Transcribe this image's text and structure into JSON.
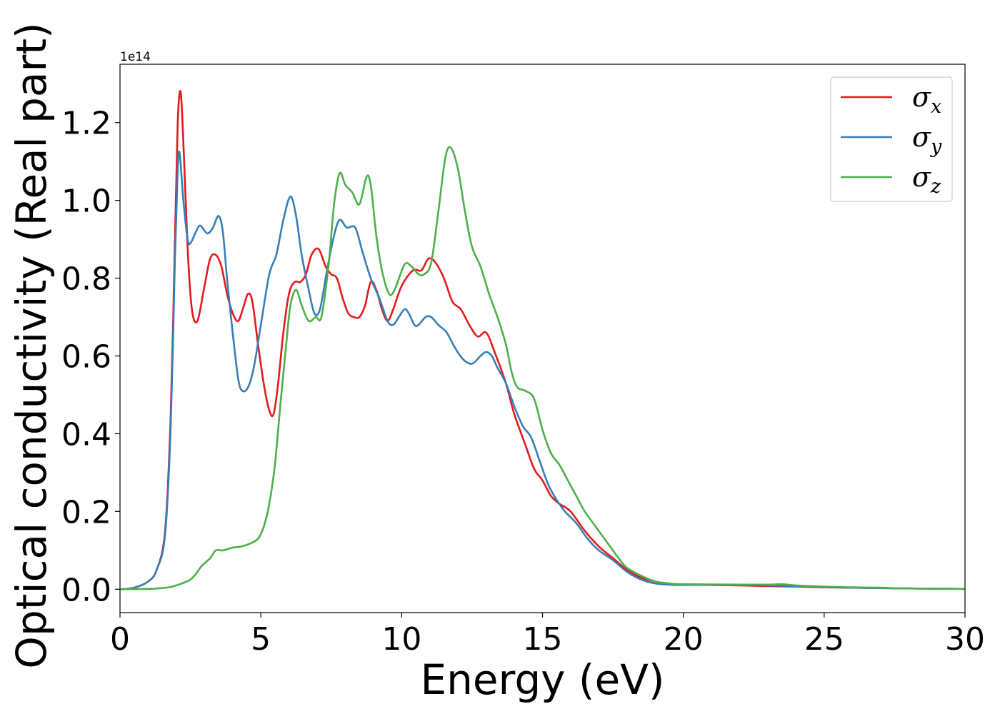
{
  "chart_data": {
    "type": "line",
    "xlabel": "Energy (eV)",
    "ylabel": "Optical conductivity (Real part)",
    "y_offset_label": "1e14",
    "xlim": [
      0,
      30
    ],
    "ylim": [
      -0.06,
      1.35
    ],
    "x_ticks": [
      0,
      5,
      10,
      15,
      20,
      25,
      30
    ],
    "x_tick_labels": [
      "0",
      "5",
      "10",
      "15",
      "20",
      "25",
      "30"
    ],
    "y_ticks": [
      0.0,
      0.2,
      0.4,
      0.6,
      0.8,
      1.0,
      1.2
    ],
    "y_tick_labels": [
      "0.0",
      "0.2",
      "0.4",
      "0.6",
      "0.8",
      "1.0",
      "1.2"
    ],
    "grid": false,
    "legend_position": "top-right",
    "series": [
      {
        "name": "σx",
        "base": "σ",
        "sub": "x",
        "color": "#e41a1c",
        "points": [
          [
            0,
            0
          ],
          [
            0.5,
            0.004
          ],
          [
            1,
            0.02
          ],
          [
            1.3,
            0.05
          ],
          [
            1.6,
            0.15
          ],
          [
            1.8,
            0.45
          ],
          [
            1.95,
            0.9
          ],
          [
            2.05,
            1.2
          ],
          [
            2.15,
            1.28
          ],
          [
            2.25,
            1.15
          ],
          [
            2.4,
            0.88
          ],
          [
            2.55,
            0.72
          ],
          [
            2.75,
            0.69
          ],
          [
            3,
            0.78
          ],
          [
            3.2,
            0.85
          ],
          [
            3.4,
            0.86
          ],
          [
            3.6,
            0.83
          ],
          [
            3.8,
            0.76
          ],
          [
            4,
            0.71
          ],
          [
            4.2,
            0.69
          ],
          [
            4.4,
            0.73
          ],
          [
            4.55,
            0.76
          ],
          [
            4.7,
            0.74
          ],
          [
            4.9,
            0.63
          ],
          [
            5.1,
            0.53
          ],
          [
            5.3,
            0.46
          ],
          [
            5.45,
            0.45
          ],
          [
            5.6,
            0.52
          ],
          [
            5.8,
            0.66
          ],
          [
            6,
            0.76
          ],
          [
            6.2,
            0.79
          ],
          [
            6.4,
            0.79
          ],
          [
            6.6,
            0.81
          ],
          [
            6.8,
            0.86
          ],
          [
            7.05,
            0.875
          ],
          [
            7.3,
            0.83
          ],
          [
            7.5,
            0.81
          ],
          [
            7.7,
            0.8
          ],
          [
            7.9,
            0.75
          ],
          [
            8.1,
            0.71
          ],
          [
            8.3,
            0.7
          ],
          [
            8.5,
            0.7
          ],
          [
            8.7,
            0.73
          ],
          [
            8.9,
            0.79
          ],
          [
            9.1,
            0.77
          ],
          [
            9.3,
            0.72
          ],
          [
            9.5,
            0.69
          ],
          [
            9.7,
            0.72
          ],
          [
            10,
            0.78
          ],
          [
            10.4,
            0.82
          ],
          [
            10.7,
            0.82
          ],
          [
            10.95,
            0.85
          ],
          [
            11.2,
            0.84
          ],
          [
            11.5,
            0.8
          ],
          [
            11.8,
            0.74
          ],
          [
            12.1,
            0.72
          ],
          [
            12.4,
            0.68
          ],
          [
            12.7,
            0.65
          ],
          [
            13,
            0.66
          ],
          [
            13.3,
            0.61
          ],
          [
            13.7,
            0.53
          ],
          [
            14,
            0.45
          ],
          [
            14.4,
            0.37
          ],
          [
            14.7,
            0.31
          ],
          [
            15,
            0.28
          ],
          [
            15.3,
            0.24
          ],
          [
            15.6,
            0.22
          ],
          [
            16,
            0.2
          ],
          [
            16.5,
            0.15
          ],
          [
            17,
            0.11
          ],
          [
            17.5,
            0.08
          ],
          [
            18,
            0.05
          ],
          [
            18.5,
            0.03
          ],
          [
            19,
            0.02
          ],
          [
            19.5,
            0.013
          ],
          [
            20,
            0.012
          ],
          [
            22,
            0.01
          ],
          [
            23,
            0.008
          ],
          [
            24,
            0.007
          ],
          [
            25,
            0.005
          ],
          [
            26,
            0.004
          ],
          [
            27,
            0.003
          ],
          [
            28,
            0.002
          ],
          [
            30,
            0.001
          ]
        ]
      },
      {
        "name": "σy",
        "base": "σ",
        "sub": "y",
        "color": "#377eb8",
        "points": [
          [
            0,
            0
          ],
          [
            0.5,
            0.004
          ],
          [
            1,
            0.02
          ],
          [
            1.3,
            0.05
          ],
          [
            1.6,
            0.14
          ],
          [
            1.8,
            0.42
          ],
          [
            1.95,
            0.85
          ],
          [
            2.05,
            1.08
          ],
          [
            2.12,
            1.12
          ],
          [
            2.25,
            1.0
          ],
          [
            2.4,
            0.9
          ],
          [
            2.5,
            0.89
          ],
          [
            2.7,
            0.92
          ],
          [
            2.85,
            0.935
          ],
          [
            3.1,
            0.915
          ],
          [
            3.3,
            0.93
          ],
          [
            3.5,
            0.96
          ],
          [
            3.65,
            0.92
          ],
          [
            3.8,
            0.8
          ],
          [
            4,
            0.66
          ],
          [
            4.2,
            0.54
          ],
          [
            4.35,
            0.51
          ],
          [
            4.55,
            0.52
          ],
          [
            4.75,
            0.57
          ],
          [
            5,
            0.68
          ],
          [
            5.3,
            0.81
          ],
          [
            5.55,
            0.86
          ],
          [
            5.8,
            0.95
          ],
          [
            6.05,
            1.01
          ],
          [
            6.25,
            0.96
          ],
          [
            6.45,
            0.86
          ],
          [
            6.7,
            0.77
          ],
          [
            6.9,
            0.71
          ],
          [
            7.1,
            0.72
          ],
          [
            7.35,
            0.82
          ],
          [
            7.6,
            0.91
          ],
          [
            7.8,
            0.95
          ],
          [
            8.05,
            0.93
          ],
          [
            8.35,
            0.93
          ],
          [
            8.6,
            0.87
          ],
          [
            8.9,
            0.8
          ],
          [
            9.2,
            0.75
          ],
          [
            9.5,
            0.69
          ],
          [
            9.7,
            0.68
          ],
          [
            9.9,
            0.7
          ],
          [
            10.1,
            0.72
          ],
          [
            10.25,
            0.71
          ],
          [
            10.45,
            0.68
          ],
          [
            10.6,
            0.68
          ],
          [
            10.85,
            0.7
          ],
          [
            11.05,
            0.7
          ],
          [
            11.3,
            0.68
          ],
          [
            11.6,
            0.66
          ],
          [
            11.9,
            0.62
          ],
          [
            12.2,
            0.59
          ],
          [
            12.5,
            0.58
          ],
          [
            12.8,
            0.6
          ],
          [
            13,
            0.61
          ],
          [
            13.2,
            0.6
          ],
          [
            13.4,
            0.57
          ],
          [
            13.7,
            0.53
          ],
          [
            14,
            0.47
          ],
          [
            14.3,
            0.42
          ],
          [
            14.6,
            0.39
          ],
          [
            14.9,
            0.33
          ],
          [
            15.2,
            0.27
          ],
          [
            15.5,
            0.23
          ],
          [
            15.8,
            0.2
          ],
          [
            16.2,
            0.17
          ],
          [
            16.6,
            0.13
          ],
          [
            17,
            0.1
          ],
          [
            17.5,
            0.075
          ],
          [
            18,
            0.045
          ],
          [
            18.5,
            0.025
          ],
          [
            19,
            0.015
          ],
          [
            19.5,
            0.012
          ],
          [
            20,
            0.011
          ],
          [
            22,
            0.012
          ],
          [
            23,
            0.01
          ],
          [
            24,
            0.008
          ],
          [
            25,
            0.006
          ],
          [
            26,
            0.004
          ],
          [
            27,
            0.003
          ],
          [
            28,
            0.002
          ],
          [
            30,
            0.001
          ]
        ]
      },
      {
        "name": "σz",
        "base": "σ",
        "sub": "z",
        "color": "#4daf4a",
        "points": [
          [
            0,
            0
          ],
          [
            1,
            0.001
          ],
          [
            1.5,
            0.003
          ],
          [
            1.8,
            0.006
          ],
          [
            2,
            0.01
          ],
          [
            2.2,
            0.015
          ],
          [
            2.5,
            0.025
          ],
          [
            2.7,
            0.04
          ],
          [
            2.9,
            0.06
          ],
          [
            3.2,
            0.08
          ],
          [
            3.4,
            0.1
          ],
          [
            3.65,
            0.1
          ],
          [
            4,
            0.107
          ],
          [
            4.3,
            0.11
          ],
          [
            4.6,
            0.117
          ],
          [
            4.9,
            0.13
          ],
          [
            5.1,
            0.16
          ],
          [
            5.3,
            0.22
          ],
          [
            5.5,
            0.32
          ],
          [
            5.7,
            0.48
          ],
          [
            5.9,
            0.63
          ],
          [
            6.05,
            0.73
          ],
          [
            6.25,
            0.77
          ],
          [
            6.45,
            0.73
          ],
          [
            6.7,
            0.69
          ],
          [
            6.95,
            0.7
          ],
          [
            7.15,
            0.7
          ],
          [
            7.4,
            0.83
          ],
          [
            7.6,
            0.99
          ],
          [
            7.8,
            1.07
          ],
          [
            8,
            1.04
          ],
          [
            8.25,
            1.02
          ],
          [
            8.5,
            0.99
          ],
          [
            8.75,
            1.06
          ],
          [
            8.9,
            1.04
          ],
          [
            9.1,
            0.91
          ],
          [
            9.3,
            0.82
          ],
          [
            9.55,
            0.76
          ],
          [
            9.75,
            0.77
          ],
          [
            10.1,
            0.835
          ],
          [
            10.35,
            0.83
          ],
          [
            10.6,
            0.81
          ],
          [
            10.8,
            0.81
          ],
          [
            11.05,
            0.84
          ],
          [
            11.3,
            0.97
          ],
          [
            11.55,
            1.11
          ],
          [
            11.75,
            1.135
          ],
          [
            12,
            1.08
          ],
          [
            12.25,
            0.97
          ],
          [
            12.5,
            0.88
          ],
          [
            12.8,
            0.83
          ],
          [
            13.1,
            0.76
          ],
          [
            13.4,
            0.7
          ],
          [
            13.7,
            0.63
          ],
          [
            13.9,
            0.56
          ],
          [
            14.1,
            0.52
          ],
          [
            14.4,
            0.51
          ],
          [
            14.7,
            0.49
          ],
          [
            15,
            0.41
          ],
          [
            15.3,
            0.35
          ],
          [
            15.6,
            0.32
          ],
          [
            15.9,
            0.28
          ],
          [
            16.2,
            0.24
          ],
          [
            16.5,
            0.2
          ],
          [
            16.9,
            0.16
          ],
          [
            17.3,
            0.12
          ],
          [
            17.7,
            0.08
          ],
          [
            18,
            0.055
          ],
          [
            18.5,
            0.035
          ],
          [
            19,
            0.02
          ],
          [
            19.5,
            0.015
          ],
          [
            20,
            0.013
          ],
          [
            22,
            0.012
          ],
          [
            23,
            0.012
          ],
          [
            23.5,
            0.013
          ],
          [
            24,
            0.01
          ],
          [
            25,
            0.007
          ],
          [
            26,
            0.005
          ],
          [
            27,
            0.004
          ],
          [
            28,
            0.002
          ],
          [
            30,
            0.001
          ]
        ]
      }
    ]
  }
}
